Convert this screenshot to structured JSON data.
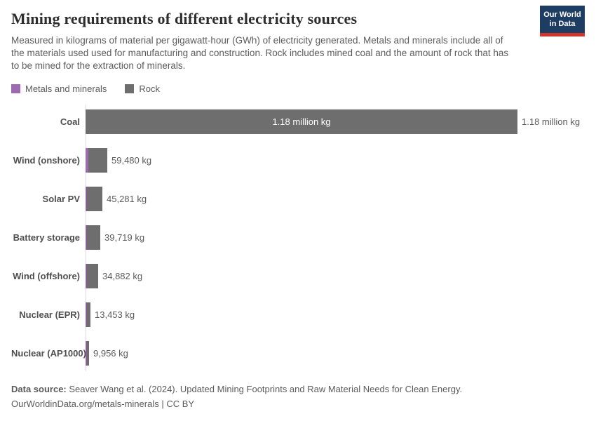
{
  "header": {
    "title": "Mining requirements of different electricity sources",
    "subtitle": "Measured in kilograms of material per gigawatt-hour (GWh) of electricity generated. Metals and minerals include all of the materials used used for manufacturing and construction. Rock includes mined coal and the amount of rock that has to be mined for the extraction of minerals.",
    "logo": {
      "line1": "Our World",
      "line2": "in Data",
      "bg": "#1d3d63",
      "accent": "#d0362e"
    }
  },
  "legend": {
    "items": [
      {
        "label": "Metals and minerals",
        "color": "#9d6cb0"
      },
      {
        "label": "Rock",
        "color": "#6e6e6e"
      }
    ]
  },
  "chart_data": {
    "type": "bar",
    "orientation": "horizontal",
    "stacked": true,
    "title": "Mining requirements of different electricity sources",
    "unit": "kg of material per GWh",
    "xlim": [
      0,
      1180000
    ],
    "grid": false,
    "legend_position": "top-left",
    "categories": [
      "Coal",
      "Wind (onshore)",
      "Solar PV",
      "Battery storage",
      "Wind (offshore)",
      "Nuclear (EPR)",
      "Nuclear (AP1000)"
    ],
    "totals": [
      1180000,
      59480,
      45281,
      39719,
      34882,
      13453,
      9956
    ],
    "total_labels": [
      "1.18 million kg",
      "59,480 kg",
      "45,281 kg",
      "39,719 kg",
      "34,882 kg",
      "13,453 kg",
      "9,956 kg"
    ],
    "bar_inner_labels": [
      "1.18 million kg",
      "",
      "",
      "",
      "",
      "",
      ""
    ],
    "series": [
      {
        "name": "Metals and minerals",
        "color": "#9d6cb0",
        "values_est": [
          0,
          6800,
          1800,
          1700,
          2700,
          900,
          700
        ]
      },
      {
        "name": "Rock",
        "color": "#6e6e6e",
        "values_est": [
          1180000,
          52680,
          43481,
          38019,
          32182,
          12553,
          9256
        ]
      }
    ]
  },
  "footer": {
    "datasource_label": "Data source:",
    "datasource_text": " Seaver Wang et al. (2024). Updated Mining Footprints and Raw Material Needs for Clean Energy.",
    "license": "OurWorldinData.org/metals-minerals | CC BY"
  }
}
